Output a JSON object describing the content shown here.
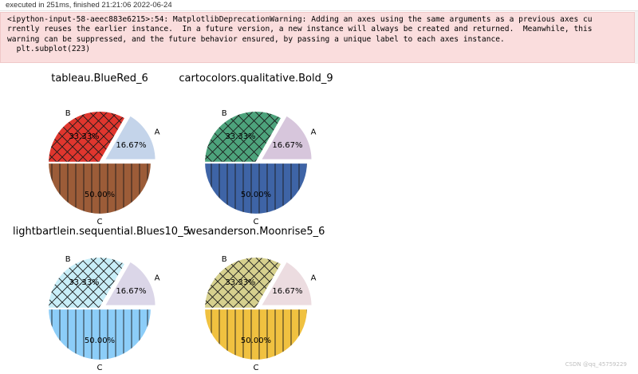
{
  "cell": {
    "exec_status": "executed in 251ms, finished 21:21:06 2022-06-24"
  },
  "warning": {
    "text": "<ipython-input-58-aeec883e6215>:54: MatplotlibDeprecationWarning: Adding an axes using the same arguments as a previous axes cu\nrrently reuses the earlier instance.  In a future version, a new instance will always be created and returned.  Meanwhile, this\nwarning can be suppressed, and the future behavior ensured, by passing a unique label to each axes instance.\n  plt.subplot(223)"
  },
  "watermark": "CSDN @qq_45759229",
  "chart_data": [
    {
      "type": "pie",
      "title": "tableau.BlueRed_6",
      "labels": [
        "A",
        "B",
        "C"
      ],
      "values": [
        16.67,
        33.33,
        50.0
      ],
      "autopct": [
        "16.67%",
        "33.33%",
        "50.00%"
      ],
      "explode": [
        0.1,
        0,
        0
      ],
      "hatches": [
        "",
        "x",
        "|"
      ],
      "colors": [
        "#c4d4ea",
        "#e0362e",
        "#9c5c38"
      ]
    },
    {
      "type": "pie",
      "title": "cartocolors.qualitative.Bold_9",
      "labels": [
        "A",
        "B",
        "C"
      ],
      "values": [
        16.67,
        33.33,
        50.0
      ],
      "autopct": [
        "16.67%",
        "33.33%",
        "50.00%"
      ],
      "explode": [
        0.1,
        0,
        0
      ],
      "hatches": [
        "",
        "x",
        "|"
      ],
      "colors": [
        "#d7c6dc",
        "#4da37c",
        "#3e64a6"
      ]
    },
    {
      "type": "pie",
      "title": "lightbartlein.sequential.Blues10_5",
      "labels": [
        "A",
        "B",
        "C"
      ],
      "values": [
        16.67,
        33.33,
        50.0
      ],
      "autopct": [
        "16.67%",
        "33.33%",
        "50.00%"
      ],
      "explode": [
        0.1,
        0,
        0
      ],
      "hatches": [
        "",
        "x",
        "|"
      ],
      "colors": [
        "#dbd6e8",
        "#c8eef8",
        "#8ccdf8"
      ]
    },
    {
      "type": "pie",
      "title": "wesanderson.Moonrise5_6",
      "labels": [
        "A",
        "B",
        "C"
      ],
      "values": [
        16.67,
        33.33,
        50.0
      ],
      "autopct": [
        "16.67%",
        "33.33%",
        "50.00%"
      ],
      "explode": [
        0.1,
        0,
        0
      ],
      "hatches": [
        "",
        "x",
        "|"
      ],
      "colors": [
        "#ecdce0",
        "#d6d08e",
        "#f0c140"
      ]
    }
  ]
}
